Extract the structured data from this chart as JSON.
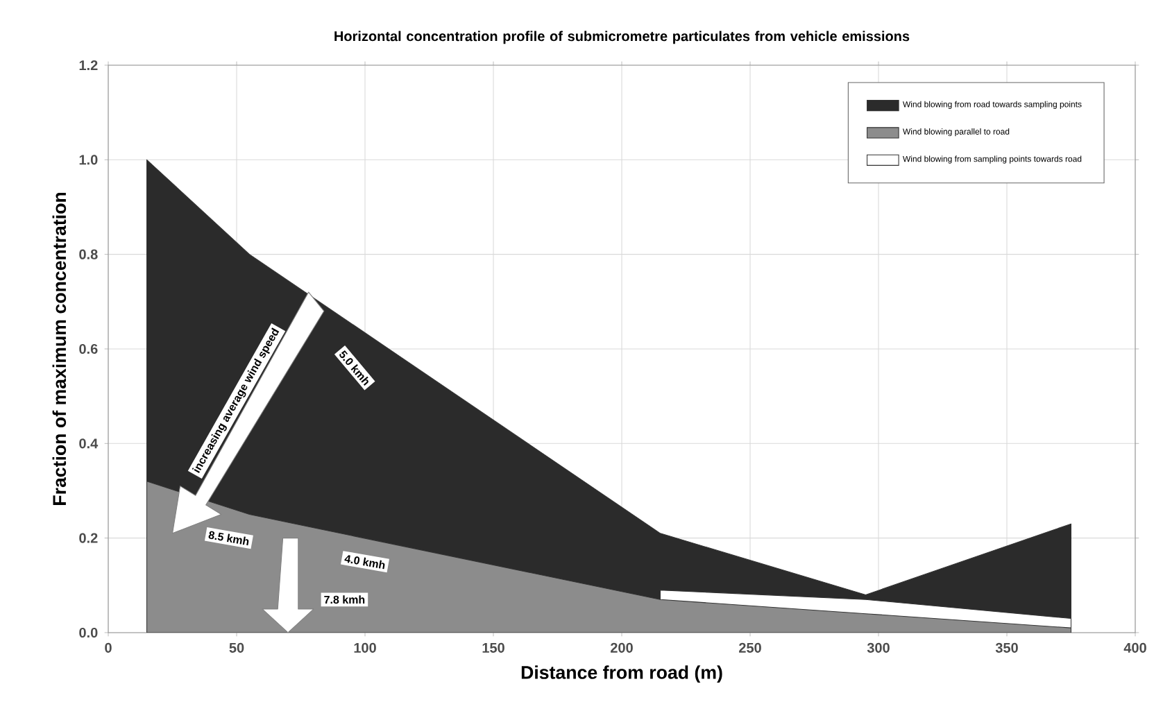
{
  "chart_data": {
    "type": "area",
    "title": "Horizontal concentration profile of submicrometre particulates from vehicle emissions",
    "xlabel": "Distance from road (m)",
    "ylabel": "Fraction of maximum concentration",
    "x": [
      15,
      55,
      215,
      295,
      375
    ],
    "series": [
      {
        "name": "Wind blowing from road towards sampling points",
        "color": "#2b2b2b",
        "values": [
          1.0,
          0.8,
          0.21,
          0.08,
          0.23
        ]
      },
      {
        "name": "Wind blowing from sampling points towards road",
        "color": "#ffffff",
        "values": [
          null,
          null,
          0.09,
          0.07,
          0.03
        ]
      },
      {
        "name": "Wind blowing parallel to road",
        "color": "#8c8c8c",
        "values": [
          0.32,
          0.25,
          0.07,
          0.04,
          0.01
        ]
      }
    ],
    "xlim": [
      0,
      400
    ],
    "ylim": [
      0,
      1.2
    ],
    "xticks": [
      0,
      50,
      100,
      150,
      200,
      250,
      300,
      350,
      400
    ],
    "yticks": [
      {
        "value": 0,
        "label": "0.0"
      },
      {
        "value": 0.2,
        "label": "0.2"
      },
      {
        "value": 0.4,
        "label": "0.4"
      },
      {
        "value": 0.6,
        "label": "0.6"
      },
      {
        "value": 0.8,
        "label": "0.8"
      },
      {
        "value": 1.0,
        "label": "1.0"
      },
      {
        "value": 1.2,
        "label": "1.2"
      }
    ],
    "grid": true,
    "legend": "top right",
    "annotations": [
      "increasing average wind speed",
      "5.0 kmh",
      "8.5 kmh",
      "4.0 kmh",
      "7.8 kmh"
    ]
  }
}
